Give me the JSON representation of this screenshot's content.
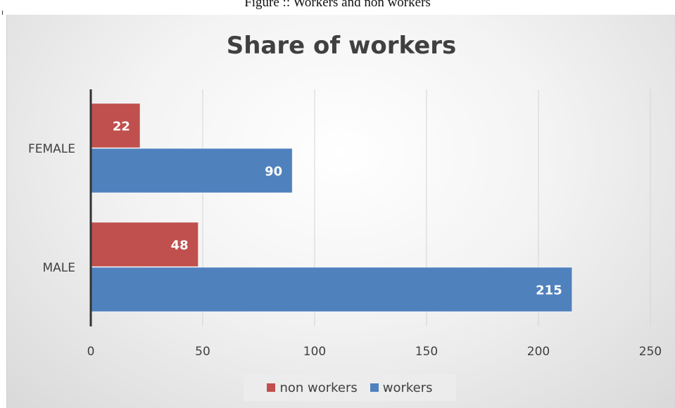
{
  "figure_caption": "Figure :: Workers and non workers",
  "chart_data": {
    "type": "bar",
    "orientation": "horizontal",
    "title": "Share of workers",
    "categories": [
      "FEMALE",
      "MALE"
    ],
    "series": [
      {
        "name": "non workers",
        "values": [
          22,
          48
        ],
        "color": "#c0504d"
      },
      {
        "name": "workers",
        "values": [
          90,
          215
        ],
        "color": "#4f81bd"
      }
    ],
    "xlim": [
      0,
      250
    ],
    "xticks": [
      0,
      50,
      100,
      150,
      200,
      250
    ],
    "grid": true,
    "legend_position": "bottom",
    "data_labels": true
  }
}
